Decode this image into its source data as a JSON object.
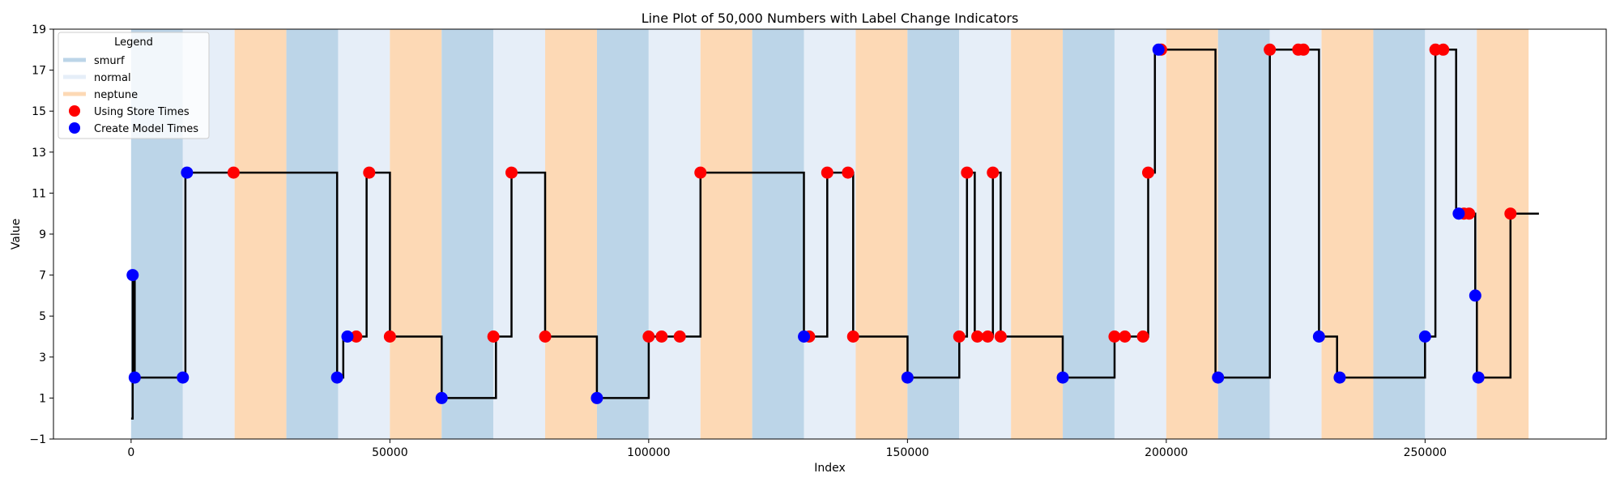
{
  "chart_data": {
    "type": "line",
    "title": "Line Plot of 50,000 Numbers with Label Change Indicators",
    "xlabel": "Index",
    "ylabel": "Value",
    "xlim": [
      -15000,
      285000
    ],
    "ylim": [
      -1,
      19
    ],
    "x_ticks": [
      0,
      50000,
      100000,
      150000,
      200000,
      250000
    ],
    "y_ticks": [
      -1,
      1,
      3,
      5,
      7,
      9,
      11,
      13,
      15,
      17,
      19
    ],
    "grid": false,
    "legend": {
      "title": "Legend",
      "placement": "top-left",
      "entries": [
        {
          "label": "smurf",
          "kind": "band",
          "color": "#bcd5e8"
        },
        {
          "label": "normal",
          "kind": "band",
          "color": "#e6eef8"
        },
        {
          "label": "neptune",
          "kind": "band",
          "color": "#fdd9b5"
        },
        {
          "label": "Using Store Times",
          "kind": "marker",
          "color": "#ff0000"
        },
        {
          "label": "Create Model Times",
          "kind": "marker",
          "color": "#0000ff"
        }
      ]
    },
    "band_colors": {
      "smurf": "#bcd5e8",
      "normal": "#e6eef8",
      "neptune": "#fdd9b5"
    },
    "bands": [
      {
        "start": 0,
        "end": 10000,
        "label": "smurf"
      },
      {
        "start": 10000,
        "end": 20000,
        "label": "normal"
      },
      {
        "start": 20000,
        "end": 30000,
        "label": "neptune"
      },
      {
        "start": 30000,
        "end": 40000,
        "label": "smurf"
      },
      {
        "start": 40000,
        "end": 50000,
        "label": "normal"
      },
      {
        "start": 50000,
        "end": 60000,
        "label": "neptune"
      },
      {
        "start": 60000,
        "end": 70000,
        "label": "smurf"
      },
      {
        "start": 70000,
        "end": 80000,
        "label": "normal"
      },
      {
        "start": 80000,
        "end": 90000,
        "label": "neptune"
      },
      {
        "start": 90000,
        "end": 100000,
        "label": "smurf"
      },
      {
        "start": 100000,
        "end": 110000,
        "label": "normal"
      },
      {
        "start": 110000,
        "end": 120000,
        "label": "neptune"
      },
      {
        "start": 120000,
        "end": 130000,
        "label": "smurf"
      },
      {
        "start": 130000,
        "end": 140000,
        "label": "normal"
      },
      {
        "start": 140000,
        "end": 150000,
        "label": "neptune"
      },
      {
        "start": 150000,
        "end": 160000,
        "label": "smurf"
      },
      {
        "start": 160000,
        "end": 170000,
        "label": "normal"
      },
      {
        "start": 170000,
        "end": 180000,
        "label": "neptune"
      },
      {
        "start": 180000,
        "end": 190000,
        "label": "smurf"
      },
      {
        "start": 190000,
        "end": 200000,
        "label": "normal"
      },
      {
        "start": 200000,
        "end": 210000,
        "label": "neptune"
      },
      {
        "start": 210000,
        "end": 220000,
        "label": "smurf"
      },
      {
        "start": 220000,
        "end": 230000,
        "label": "normal"
      },
      {
        "start": 230000,
        "end": 240000,
        "label": "neptune"
      },
      {
        "start": 240000,
        "end": 250000,
        "label": "smurf"
      },
      {
        "start": 250000,
        "end": 260000,
        "label": "normal"
      },
      {
        "start": 260000,
        "end": 270000,
        "label": "neptune"
      }
    ],
    "line": {
      "color": "#000000",
      "steps": [
        [
          0,
          0
        ],
        [
          300,
          0
        ],
        [
          300,
          7
        ],
        [
          700,
          7
        ],
        [
          700,
          2
        ],
        [
          10000,
          2
        ],
        [
          10500,
          2
        ],
        [
          10500,
          12
        ],
        [
          39800,
          12
        ],
        [
          39800,
          2
        ],
        [
          41000,
          2
        ],
        [
          41000,
          4
        ],
        [
          45500,
          4
        ],
        [
          45500,
          12
        ],
        [
          50000,
          12
        ],
        [
          50000,
          4
        ],
        [
          60000,
          4
        ],
        [
          60000,
          1
        ],
        [
          70500,
          1
        ],
        [
          70500,
          4
        ],
        [
          73500,
          4
        ],
        [
          73500,
          12
        ],
        [
          80000,
          12
        ],
        [
          80000,
          4
        ],
        [
          90000,
          4
        ],
        [
          90000,
          1
        ],
        [
          100000,
          1
        ],
        [
          100000,
          4
        ],
        [
          110000,
          4
        ],
        [
          110000,
          12
        ],
        [
          130000,
          12
        ],
        [
          130000,
          4
        ],
        [
          134500,
          4
        ],
        [
          134500,
          12
        ],
        [
          139500,
          12
        ],
        [
          139500,
          4
        ],
        [
          150000,
          4
        ],
        [
          150000,
          2
        ],
        [
          160000,
          2
        ],
        [
          160000,
          4
        ],
        [
          161500,
          4
        ],
        [
          161500,
          12
        ],
        [
          163000,
          12
        ],
        [
          163000,
          4
        ],
        [
          166500,
          4
        ],
        [
          166500,
          12
        ],
        [
          168000,
          12
        ],
        [
          168000,
          4
        ],
        [
          180000,
          4
        ],
        [
          180000,
          2
        ],
        [
          190000,
          2
        ],
        [
          190000,
          4
        ],
        [
          196500,
          4
        ],
        [
          196500,
          12
        ],
        [
          197800,
          12
        ],
        [
          197800,
          18
        ],
        [
          209500,
          18
        ],
        [
          209500,
          2
        ],
        [
          220000,
          2
        ],
        [
          220000,
          18
        ],
        [
          229500,
          18
        ],
        [
          229500,
          4
        ],
        [
          233000,
          4
        ],
        [
          233000,
          2
        ],
        [
          250000,
          2
        ],
        [
          250000,
          4
        ],
        [
          252000,
          4
        ],
        [
          252000,
          18
        ],
        [
          256000,
          18
        ],
        [
          256000,
          10
        ],
        [
          259700,
          10
        ],
        [
          259700,
          6
        ],
        [
          260000,
          6
        ],
        [
          260000,
          2
        ],
        [
          266500,
          2
        ],
        [
          266500,
          10
        ],
        [
          272000,
          10
        ]
      ]
    },
    "series": [
      {
        "name": "Using Store Times",
        "color": "#ff0000",
        "points": [
          [
            19800,
            12
          ],
          [
            43500,
            4
          ],
          [
            46000,
            12
          ],
          [
            50000,
            4
          ],
          [
            70000,
            4
          ],
          [
            73500,
            12
          ],
          [
            80000,
            4
          ],
          [
            100000,
            4
          ],
          [
            102500,
            4
          ],
          [
            106000,
            4
          ],
          [
            110000,
            12
          ],
          [
            131000,
            4
          ],
          [
            134500,
            12
          ],
          [
            138500,
            12
          ],
          [
            139500,
            4
          ],
          [
            160000,
            4
          ],
          [
            161500,
            12
          ],
          [
            163500,
            4
          ],
          [
            165500,
            4
          ],
          [
            166500,
            12
          ],
          [
            168000,
            4
          ],
          [
            190000,
            4
          ],
          [
            192000,
            4
          ],
          [
            195500,
            4
          ],
          [
            196500,
            12
          ],
          [
            199000,
            18
          ],
          [
            220000,
            18
          ],
          [
            225500,
            18
          ],
          [
            226500,
            18
          ],
          [
            252000,
            18
          ],
          [
            253500,
            18
          ],
          [
            257500,
            10
          ],
          [
            258500,
            10
          ],
          [
            266500,
            10
          ]
        ]
      },
      {
        "name": "Create Model Times",
        "color": "#0000ff",
        "points": [
          [
            300,
            7
          ],
          [
            700,
            2
          ],
          [
            10000,
            2
          ],
          [
            10800,
            12
          ],
          [
            39800,
            2
          ],
          [
            41800,
            4
          ],
          [
            60000,
            1
          ],
          [
            90000,
            1
          ],
          [
            130000,
            4
          ],
          [
            150000,
            2
          ],
          [
            180000,
            2
          ],
          [
            198500,
            18
          ],
          [
            210000,
            2
          ],
          [
            229500,
            4
          ],
          [
            233500,
            2
          ],
          [
            250000,
            4
          ],
          [
            256500,
            10
          ],
          [
            259700,
            6
          ],
          [
            260300,
            2
          ]
        ]
      }
    ]
  }
}
